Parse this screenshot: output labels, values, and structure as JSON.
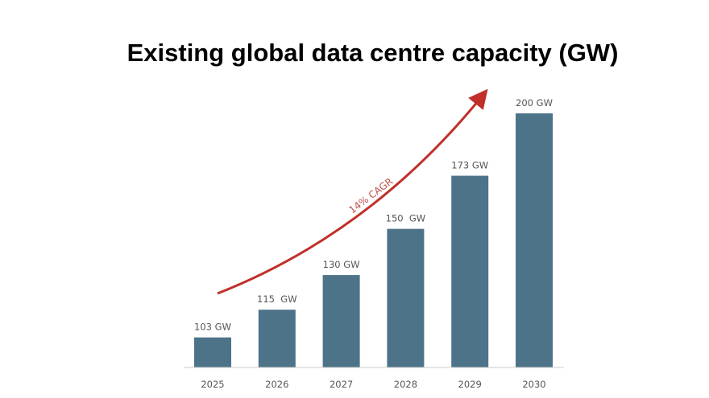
{
  "chart_data": {
    "type": "bar",
    "title": "Existing global data centre capacity (GW)",
    "categories": [
      "2025",
      "2026",
      "2027",
      "2028",
      "2029",
      "2030"
    ],
    "values": [
      103,
      115,
      130,
      150,
      173,
      200
    ],
    "data_labels": [
      "103 GW",
      "115  GW",
      "130 GW",
      "150  GW",
      "173 GW",
      "200 GW"
    ],
    "annotation": "14% CAGR",
    "xlabel": "",
    "ylabel": "",
    "ylim": [
      90,
      200
    ],
    "grid": false,
    "legend": "none",
    "colors": {
      "bar": "#4d7389",
      "arrow": "#c0302b",
      "annotation": "#c0504d",
      "axis": "#cccccc"
    }
  }
}
